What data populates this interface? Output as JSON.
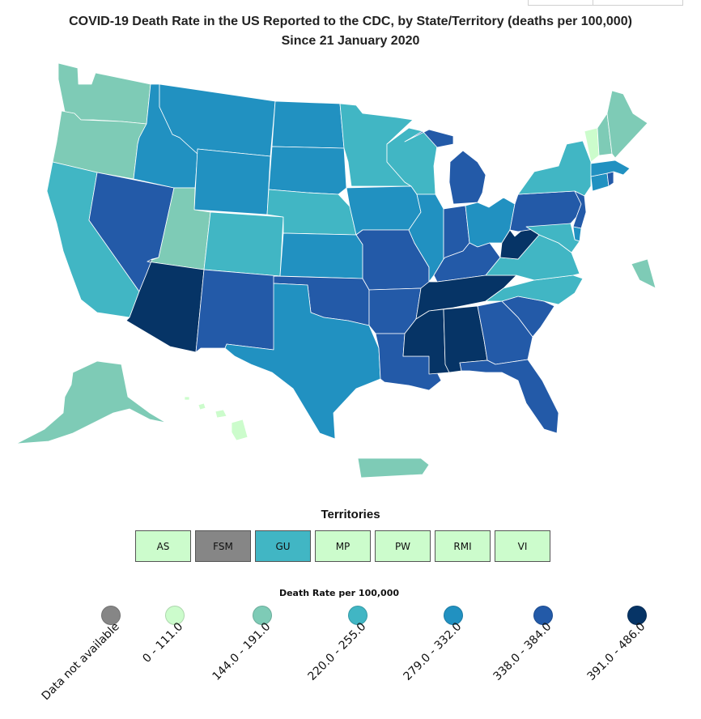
{
  "title": {
    "line1": "COVID-19 Death Rate in the US Reported to the CDC, by State/Territory (deaths per 100,000)",
    "line2": "Since 21 January 2020"
  },
  "colors": {
    "na": "#868686",
    "b0": "#ccfccc",
    "b1": "#7ecbb6",
    "b2": "#41b6c4",
    "b3": "#2191c1",
    "b4": "#235aa8",
    "b5": "#063466"
  },
  "states": {
    "WA": "b1",
    "OR": "b1",
    "CA": "b2",
    "NV": "b4",
    "ID": "b3",
    "MT": "b3",
    "WY": "b3",
    "UT": "b1",
    "AZ": "b5",
    "CO": "b2",
    "NM": "b4",
    "ND": "b3",
    "SD": "b3",
    "NE": "b2",
    "KS": "b3",
    "OK": "b4",
    "TX": "b3",
    "MN": "b2",
    "IA": "b3",
    "MO": "b4",
    "AR": "b4",
    "LA": "b4",
    "WI": "b2",
    "IL": "b3",
    "MI": "b4",
    "IN": "b4",
    "OH": "b3",
    "KY": "b4",
    "TN": "b5",
    "MS": "b5",
    "AL": "b5",
    "GA": "b4",
    "FL": "b4",
    "SC": "b4",
    "NC": "b2",
    "VA": "b2",
    "WV": "b5",
    "PA": "b4",
    "NY": "b2",
    "NJ": "b4",
    "DE": "b3",
    "MD": "b2",
    "CT": "b3",
    "RI": "b4",
    "MA": "b3",
    "VT": "b0",
    "NH": "b1",
    "ME": "b1",
    "AK": "b1",
    "HI": "b0",
    "PR": "b1",
    "DC": "b1"
  },
  "territories": {
    "title": "Territories",
    "items": [
      {
        "code": "AS",
        "bin": "b0"
      },
      {
        "code": "FSM",
        "bin": "na"
      },
      {
        "code": "GU",
        "bin": "b2"
      },
      {
        "code": "MP",
        "bin": "b0"
      },
      {
        "code": "PW",
        "bin": "b0"
      },
      {
        "code": "RMI",
        "bin": "b0"
      },
      {
        "code": "VI",
        "bin": "b0"
      }
    ]
  },
  "legend": {
    "title": "Death Rate per 100,000",
    "items": [
      {
        "label": "Data not available",
        "bin": "na"
      },
      {
        "label": "0 - 111.0",
        "bin": "b0"
      },
      {
        "label": "144.0 - 191.0",
        "bin": "b1"
      },
      {
        "label": "220.0 - 255.0",
        "bin": "b2"
      },
      {
        "label": "279.0 - 332.0",
        "bin": "b3"
      },
      {
        "label": "338.0 - 384.0",
        "bin": "b4"
      },
      {
        "label": "391.0 - 486.0",
        "bin": "b5"
      }
    ]
  }
}
